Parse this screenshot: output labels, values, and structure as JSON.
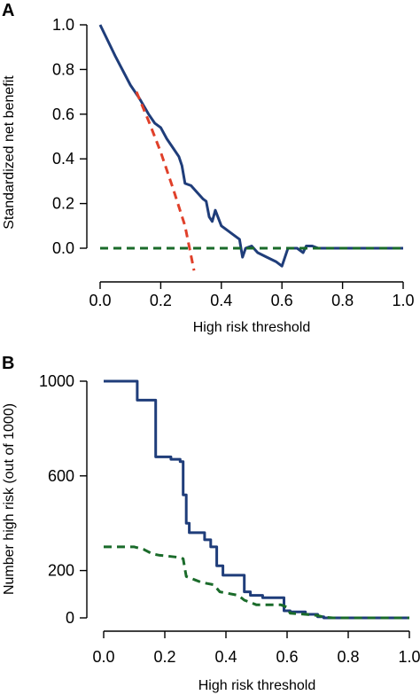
{
  "chart_data": [
    {
      "panel_label": "A",
      "type": "line",
      "xlabel": "High risk threshold",
      "ylabel": "Standardized net benefit",
      "xlim": [
        0,
        1
      ],
      "ylim": [
        -0.1,
        1.0
      ],
      "xticks": [
        "0.0",
        "0.2",
        "0.4",
        "0.6",
        "0.8",
        "1.0"
      ],
      "xtick_values": [
        0,
        0.2,
        0.4,
        0.6,
        0.8,
        1.0
      ],
      "yticks": [
        "0.0",
        "0.2",
        "0.4",
        "0.6",
        "0.8",
        "1.0"
      ],
      "ytick_values": [
        0,
        0.2,
        0.4,
        0.6,
        0.8,
        1.0
      ],
      "series": [
        {
          "color": "#1f3d7a",
          "dash": "solid",
          "x": [
            0.0,
            0.05,
            0.1,
            0.13,
            0.16,
            0.18,
            0.2,
            0.22,
            0.24,
            0.26,
            0.27,
            0.28,
            0.3,
            0.32,
            0.34,
            0.35,
            0.36,
            0.37,
            0.38,
            0.4,
            0.42,
            0.44,
            0.46,
            0.47,
            0.48,
            0.5,
            0.52,
            0.55,
            0.58,
            0.6,
            0.62,
            0.65,
            0.67,
            0.68,
            0.7,
            0.72,
            0.75,
            0.8,
            0.9,
            1.0
          ],
          "y": [
            1.0,
            0.86,
            0.73,
            0.67,
            0.6,
            0.56,
            0.54,
            0.49,
            0.45,
            0.41,
            0.37,
            0.29,
            0.28,
            0.25,
            0.22,
            0.21,
            0.14,
            0.12,
            0.17,
            0.1,
            0.08,
            0.06,
            0.04,
            -0.04,
            0.0,
            0.01,
            -0.02,
            -0.04,
            -0.06,
            -0.08,
            0.0,
            0.0,
            -0.02,
            0.01,
            0.01,
            0.0,
            0.0,
            0.0,
            0.0,
            0.0
          ]
        },
        {
          "color": "#e0402a",
          "dash": "dashed",
          "x": [
            0.12,
            0.16,
            0.2,
            0.24,
            0.28,
            0.31
          ],
          "y": [
            0.7,
            0.57,
            0.43,
            0.27,
            0.1,
            -0.1
          ]
        },
        {
          "color": "#1a6b2a",
          "dash": "dashed",
          "x": [
            0.0,
            1.0
          ],
          "y": [
            0.0,
            0.0
          ]
        }
      ]
    },
    {
      "panel_label": "B",
      "type": "line",
      "xlabel": "High risk threshold",
      "ylabel": "Number high risk (out of 1000)",
      "xlim": [
        0,
        1
      ],
      "ylim": [
        0,
        1000
      ],
      "xticks": [
        "0.0",
        "0.2",
        "0.4",
        "0.6",
        "0.8",
        "1.0"
      ],
      "xtick_values": [
        0,
        0.2,
        0.4,
        0.6,
        0.8,
        1.0
      ],
      "yticks": [
        "0",
        "200",
        "600",
        "1000"
      ],
      "ytick_values": [
        0,
        200,
        600,
        1000
      ],
      "series": [
        {
          "color": "#1f3d7a",
          "dash": "solid",
          "x": [
            0.0,
            0.11,
            0.11,
            0.14,
            0.14,
            0.17,
            0.17,
            0.22,
            0.22,
            0.25,
            0.25,
            0.26,
            0.26,
            0.27,
            0.27,
            0.28,
            0.28,
            0.33,
            0.33,
            0.35,
            0.35,
            0.37,
            0.37,
            0.39,
            0.39,
            0.46,
            0.46,
            0.48,
            0.48,
            0.52,
            0.52,
            0.59,
            0.59,
            0.61,
            0.61,
            0.66,
            0.66,
            0.7,
            0.7,
            0.72,
            0.72,
            1.0
          ],
          "y": [
            1000,
            1000,
            920,
            920,
            920,
            920,
            680,
            680,
            670,
            670,
            660,
            660,
            520,
            520,
            400,
            400,
            360,
            360,
            330,
            330,
            300,
            300,
            220,
            220,
            180,
            180,
            110,
            110,
            95,
            95,
            85,
            85,
            30,
            30,
            25,
            25,
            15,
            15,
            5,
            5,
            0,
            0
          ]
        },
        {
          "color": "#1a6b2a",
          "dash": "dashed",
          "x": [
            0.0,
            0.05,
            0.1,
            0.13,
            0.16,
            0.18,
            0.25,
            0.26,
            0.27,
            0.3,
            0.32,
            0.36,
            0.38,
            0.44,
            0.46,
            0.48,
            0.5,
            0.58,
            0.6,
            0.61,
            0.66,
            0.7,
            0.72,
            0.75,
            1.0
          ],
          "y": [
            300,
            300,
            300,
            290,
            270,
            265,
            255,
            250,
            175,
            160,
            150,
            140,
            110,
            95,
            75,
            65,
            55,
            55,
            45,
            20,
            15,
            10,
            3,
            0,
            0
          ]
        }
      ]
    }
  ]
}
